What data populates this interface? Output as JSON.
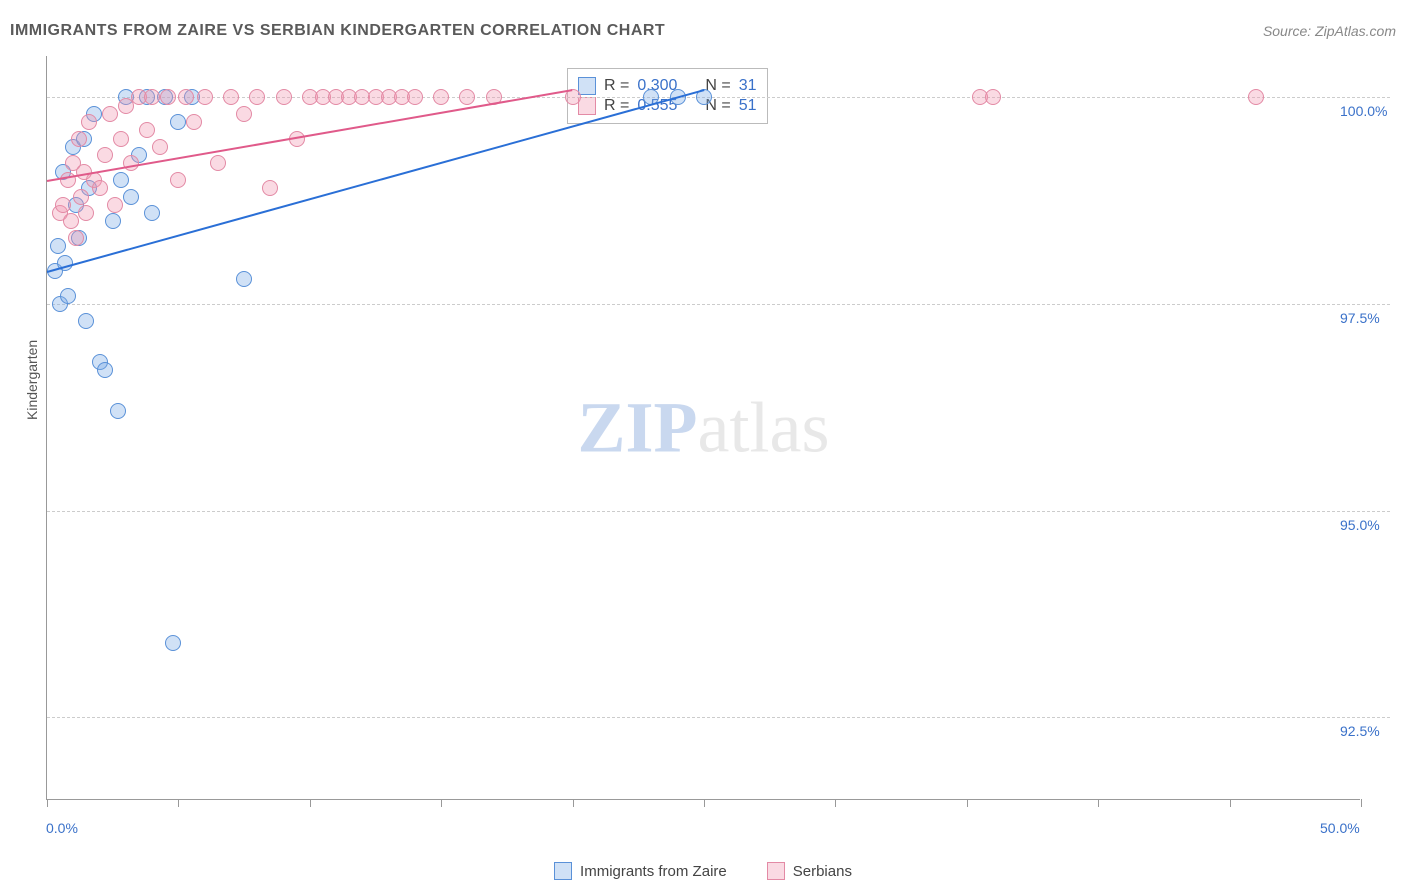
{
  "header": {
    "title": "IMMIGRANTS FROM ZAIRE VS SERBIAN KINDERGARTEN CORRELATION CHART",
    "source_prefix": "Source: ",
    "source": "ZipAtlas.com"
  },
  "watermark": {
    "zip": "ZIP",
    "atlas": "atlas"
  },
  "chart": {
    "type": "scatter",
    "ylabel": "Kindergarten",
    "xlim": [
      0,
      50
    ],
    "ylim": [
      91.5,
      100.5
    ],
    "x_ticks": [
      0,
      5,
      10,
      15,
      20,
      25,
      30,
      35,
      40,
      45,
      50
    ],
    "x_tick_labels": {
      "0": "0.0%",
      "50": "50.0%"
    },
    "y_gridlines": [
      92.5,
      95.0,
      97.5,
      100.0
    ],
    "y_tick_labels": [
      "92.5%",
      "95.0%",
      "97.5%",
      "100.0%"
    ],
    "background_color": "#ffffff",
    "grid_color": "#cccccc",
    "axis_label_color": "#3a71c9",
    "marker_radius": 8,
    "series": [
      {
        "name": "Immigrants from Zaire",
        "fill": "rgba(120,170,230,0.35)",
        "stroke": "#5a91d8",
        "trend_color": "#2a6fd6",
        "trend": {
          "x1": 0,
          "y1": 97.9,
          "x2": 25,
          "y2": 100.1
        },
        "stats": {
          "r_label": "R =",
          "r": "0.300",
          "n_label": "N =",
          "n": "31"
        },
        "points": [
          [
            0.3,
            97.9
          ],
          [
            0.4,
            98.2
          ],
          [
            0.5,
            97.5
          ],
          [
            0.6,
            99.1
          ],
          [
            0.7,
            98.0
          ],
          [
            0.8,
            97.6
          ],
          [
            1.0,
            99.4
          ],
          [
            1.1,
            98.7
          ],
          [
            1.2,
            98.3
          ],
          [
            1.4,
            99.5
          ],
          [
            1.5,
            97.3
          ],
          [
            1.6,
            98.9
          ],
          [
            1.8,
            99.8
          ],
          [
            2.0,
            96.8
          ],
          [
            2.2,
            96.7
          ],
          [
            2.5,
            98.5
          ],
          [
            2.8,
            99.0
          ],
          [
            3.0,
            100.0
          ],
          [
            3.5,
            99.3
          ],
          [
            3.8,
            100.0
          ],
          [
            4.0,
            98.6
          ],
          [
            4.5,
            100.0
          ],
          [
            5.0,
            99.7
          ],
          [
            2.7,
            96.2
          ],
          [
            3.2,
            98.8
          ],
          [
            5.5,
            100.0
          ],
          [
            4.8,
            93.4
          ],
          [
            7.5,
            97.8
          ],
          [
            25.0,
            100.0
          ],
          [
            24.0,
            100.0
          ],
          [
            23.0,
            100.0
          ]
        ]
      },
      {
        "name": "Serbians",
        "fill": "rgba(240,150,175,0.35)",
        "stroke": "#e38aa5",
        "trend_color": "#e05a8a",
        "trend": {
          "x1": 0,
          "y1": 99.0,
          "x2": 20,
          "y2": 100.1
        },
        "stats": {
          "r_label": "R =",
          "r": "0.555",
          "n_label": "N =",
          "n": "51"
        },
        "points": [
          [
            0.5,
            98.6
          ],
          [
            0.6,
            98.7
          ],
          [
            0.8,
            99.0
          ],
          [
            0.9,
            98.5
          ],
          [
            1.0,
            99.2
          ],
          [
            1.1,
            98.3
          ],
          [
            1.2,
            99.5
          ],
          [
            1.3,
            98.8
          ],
          [
            1.4,
            99.1
          ],
          [
            1.5,
            98.6
          ],
          [
            1.6,
            99.7
          ],
          [
            1.8,
            99.0
          ],
          [
            2.0,
            98.9
          ],
          [
            2.2,
            99.3
          ],
          [
            2.4,
            99.8
          ],
          [
            2.6,
            98.7
          ],
          [
            2.8,
            99.5
          ],
          [
            3.0,
            99.9
          ],
          [
            3.2,
            99.2
          ],
          [
            3.5,
            100.0
          ],
          [
            3.8,
            99.6
          ],
          [
            4.0,
            100.0
          ],
          [
            4.3,
            99.4
          ],
          [
            4.6,
            100.0
          ],
          [
            5.0,
            99.0
          ],
          [
            5.3,
            100.0
          ],
          [
            5.6,
            99.7
          ],
          [
            6.0,
            100.0
          ],
          [
            6.5,
            99.2
          ],
          [
            7.0,
            100.0
          ],
          [
            7.5,
            99.8
          ],
          [
            8.0,
            100.0
          ],
          [
            8.5,
            98.9
          ],
          [
            9.0,
            100.0
          ],
          [
            9.5,
            99.5
          ],
          [
            10.0,
            100.0
          ],
          [
            10.5,
            100.0
          ],
          [
            11.0,
            100.0
          ],
          [
            11.5,
            100.0
          ],
          [
            12.0,
            100.0
          ],
          [
            12.5,
            100.0
          ],
          [
            13.0,
            100.0
          ],
          [
            13.5,
            100.0
          ],
          [
            14.0,
            100.0
          ],
          [
            15.0,
            100.0
          ],
          [
            16.0,
            100.0
          ],
          [
            17.0,
            100.0
          ],
          [
            20.0,
            100.0
          ],
          [
            35.5,
            100.0
          ],
          [
            36.0,
            100.0
          ],
          [
            46.0,
            100.0
          ]
        ]
      }
    ]
  },
  "legend": {
    "series1": "Immigrants from Zaire",
    "series2": "Serbians"
  }
}
